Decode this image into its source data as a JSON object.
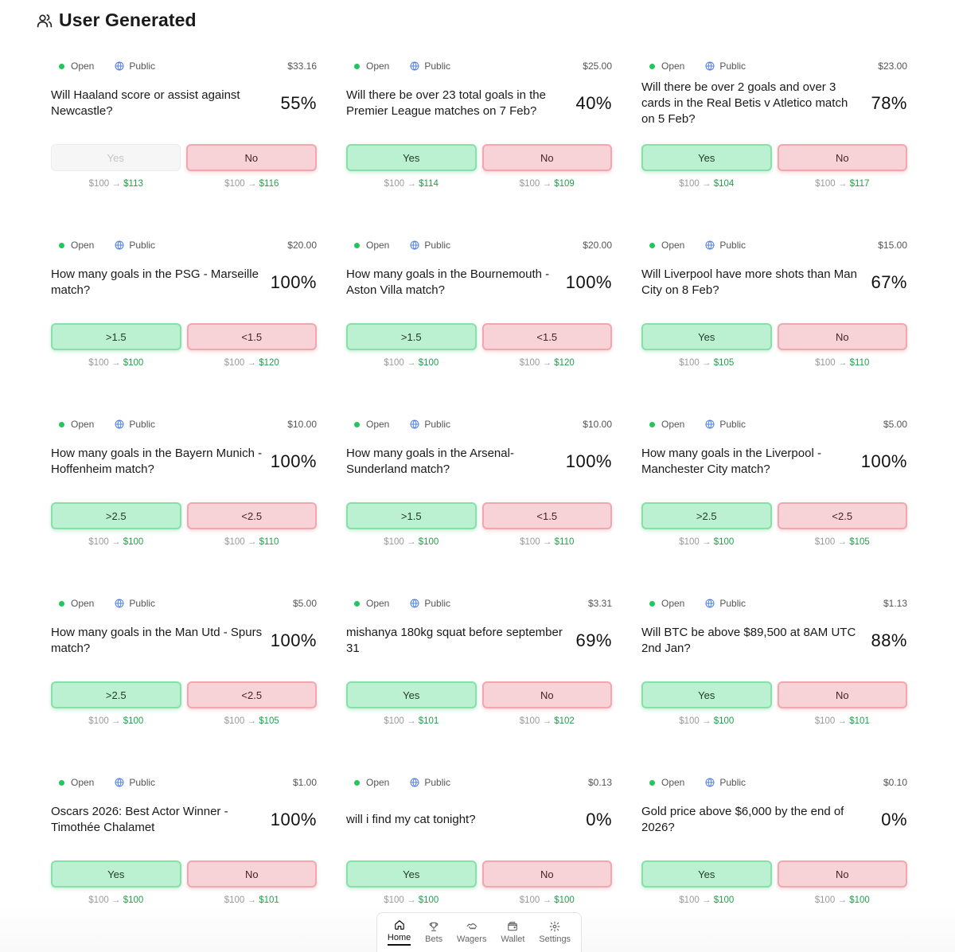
{
  "header": {
    "title": "User Generated",
    "icon": "users-icon"
  },
  "colors": {
    "open": "#22c55e",
    "yes_bg": "#bbf0d0",
    "no_bg": "#f7d3d8",
    "payout_green": "#22a04b"
  },
  "cards": [
    {
      "status": "Open",
      "visibility": "Public",
      "amount": "$33.16",
      "question": "Will Haaland score or assist against Newcastle?",
      "percent": "55%",
      "yes_label": "Yes",
      "no_label": "No",
      "yes_disabled": true,
      "yes_payout_from": "$100",
      "yes_payout_to": "$113",
      "no_payout_from": "$100",
      "no_payout_to": "$116"
    },
    {
      "status": "Open",
      "visibility": "Public",
      "amount": "$25.00",
      "question": "Will there be over 23 total goals in the Premier League matches on 7 Feb?",
      "percent": "40%",
      "yes_label": "Yes",
      "no_label": "No",
      "yes_payout_from": "$100",
      "yes_payout_to": "$114",
      "no_payout_from": "$100",
      "no_payout_to": "$109"
    },
    {
      "status": "Open",
      "visibility": "Public",
      "amount": "$23.00",
      "question": "Will there be over 2 goals and over 3 cards in the Real Betis v Atletico match on 5 Feb?",
      "percent": "78%",
      "yes_label": "Yes",
      "no_label": "No",
      "yes_payout_from": "$100",
      "yes_payout_to": "$104",
      "no_payout_from": "$100",
      "no_payout_to": "$117"
    },
    {
      "status": "Open",
      "visibility": "Public",
      "amount": "$20.00",
      "question": "How many goals in the PSG - Marseille match?",
      "percent": "100%",
      "yes_label": ">1.5",
      "no_label": "<1.5",
      "yes_payout_from": "$100",
      "yes_payout_to": "$100",
      "no_payout_from": "$100",
      "no_payout_to": "$120"
    },
    {
      "status": "Open",
      "visibility": "Public",
      "amount": "$20.00",
      "question": "How many goals in the Bournemouth - Aston Villa match?",
      "percent": "100%",
      "yes_label": ">1.5",
      "no_label": "<1.5",
      "yes_payout_from": "$100",
      "yes_payout_to": "$100",
      "no_payout_from": "$100",
      "no_payout_to": "$120"
    },
    {
      "status": "Open",
      "visibility": "Public",
      "amount": "$15.00",
      "question": "Will Liverpool have more shots than Man City on 8 Feb?",
      "percent": "67%",
      "yes_label": "Yes",
      "no_label": "No",
      "yes_payout_from": "$100",
      "yes_payout_to": "$105",
      "no_payout_from": "$100",
      "no_payout_to": "$110"
    },
    {
      "status": "Open",
      "visibility": "Public",
      "amount": "$10.00",
      "question": "How many goals in the Bayern Munich - Hoffenheim match?",
      "percent": "100%",
      "yes_label": ">2.5",
      "no_label": "<2.5",
      "yes_payout_from": "$100",
      "yes_payout_to": "$100",
      "no_payout_from": "$100",
      "no_payout_to": "$110"
    },
    {
      "status": "Open",
      "visibility": "Public",
      "amount": "$10.00",
      "question": "How many goals in the Arsenal-Sunderland match?",
      "percent": "100%",
      "yes_label": ">1.5",
      "no_label": "<1.5",
      "yes_payout_from": "$100",
      "yes_payout_to": "$100",
      "no_payout_from": "$100",
      "no_payout_to": "$110"
    },
    {
      "status": "Open",
      "visibility": "Public",
      "amount": "$5.00",
      "question": "How many goals in the Liverpool - Manchester City match?",
      "percent": "100%",
      "yes_label": ">2.5",
      "no_label": "<2.5",
      "yes_payout_from": "$100",
      "yes_payout_to": "$100",
      "no_payout_from": "$100",
      "no_payout_to": "$105"
    },
    {
      "status": "Open",
      "visibility": "Public",
      "amount": "$5.00",
      "question": "How many goals in the Man Utd - Spurs match?",
      "percent": "100%",
      "yes_label": ">2.5",
      "no_label": "<2.5",
      "yes_payout_from": "$100",
      "yes_payout_to": "$100",
      "no_payout_from": "$100",
      "no_payout_to": "$105"
    },
    {
      "status": "Open",
      "visibility": "Public",
      "amount": "$3.31",
      "question": "mishanya 180kg squat before september 31",
      "percent": "69%",
      "yes_label": "Yes",
      "no_label": "No",
      "yes_payout_from": "$100",
      "yes_payout_to": "$101",
      "no_payout_from": "$100",
      "no_payout_to": "$102"
    },
    {
      "status": "Open",
      "visibility": "Public",
      "amount": "$1.13",
      "question": "Will BTC be above $89,500 at 8AM UTC 2nd Jan?",
      "percent": "88%",
      "yes_label": "Yes",
      "no_label": "No",
      "yes_payout_from": "$100",
      "yes_payout_to": "$100",
      "no_payout_from": "$100",
      "no_payout_to": "$101"
    },
    {
      "status": "Open",
      "visibility": "Public",
      "amount": "$1.00",
      "question": "Oscars 2026: Best Actor Winner - Timothée Chalamet",
      "percent": "100%",
      "yes_label": "Yes",
      "no_label": "No",
      "yes_payout_from": "$100",
      "yes_payout_to": "$100",
      "no_payout_from": "$100",
      "no_payout_to": "$101"
    },
    {
      "status": "Open",
      "visibility": "Public",
      "amount": "$0.13",
      "question": "will i find my cat tonight?",
      "percent": "0%",
      "yes_label": "Yes",
      "no_label": "No",
      "yes_payout_from": "$100",
      "yes_payout_to": "$100",
      "no_payout_from": "$100",
      "no_payout_to": "$100"
    },
    {
      "status": "Open",
      "visibility": "Public",
      "amount": "$0.10",
      "question": "Gold price above $6,000 by the end of 2026?",
      "percent": "0%",
      "yes_label": "Yes",
      "no_label": "No",
      "yes_payout_from": "$100",
      "yes_payout_to": "$100",
      "no_payout_from": "$100",
      "no_payout_to": "$100"
    }
  ],
  "arrow": "→",
  "nav": {
    "home": {
      "label": "Home",
      "icon": "home-icon",
      "active": true
    },
    "bets": {
      "label": "Bets",
      "icon": "trophy-icon"
    },
    "wagers": {
      "label": "Wagers",
      "icon": "handshake-icon"
    },
    "wallet": {
      "label": "Wallet",
      "icon": "wallet-icon"
    },
    "settings": {
      "label": "Settings",
      "icon": "gear-icon"
    }
  }
}
